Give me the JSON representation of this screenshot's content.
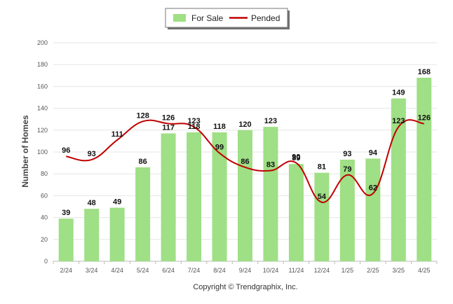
{
  "chart_data": {
    "type": "bar",
    "categories": [
      "2/24",
      "3/24",
      "4/24",
      "5/24",
      "6/24",
      "7/24",
      "8/24",
      "9/24",
      "10/24",
      "11/24",
      "12/24",
      "1/25",
      "2/25",
      "3/25",
      "4/25"
    ],
    "series": [
      {
        "name": "For Sale",
        "type": "bar",
        "color": "#9fdf85",
        "values": [
          39,
          48,
          49,
          86,
          117,
          118,
          118,
          120,
          123,
          89,
          81,
          93,
          94,
          149,
          168
        ]
      },
      {
        "name": "Pended",
        "type": "line",
        "color": "#c00000",
        "values": [
          96,
          93,
          111,
          128,
          126,
          123,
          99,
          86,
          83,
          90,
          54,
          79,
          62,
          123,
          126
        ]
      }
    ],
    "ylabel": "Number of Homes",
    "ylim": [
      0,
      200
    ],
    "yticks": [
      "0",
      "20",
      "40",
      "60",
      "80",
      "100",
      "120",
      "140",
      "160",
      "180",
      "200"
    ],
    "grid": true,
    "legend_position": "top-center",
    "footer": "Copyright © Trendgraphix, Inc."
  }
}
